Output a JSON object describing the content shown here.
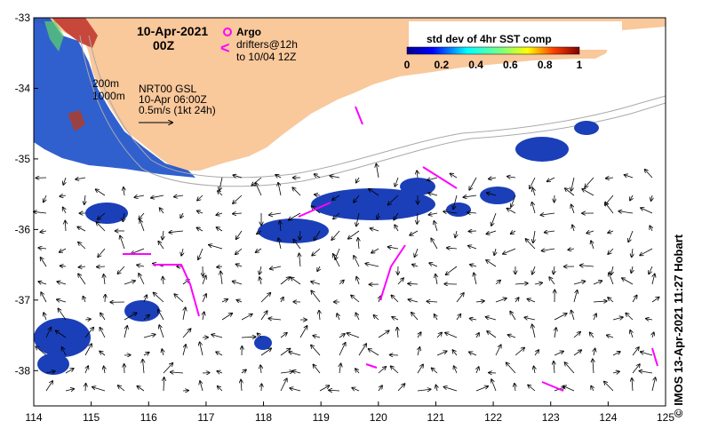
{
  "header": {
    "date": "10-Apr-2021",
    "time": "00Z"
  },
  "legend": {
    "argo_label": "Argo",
    "drifters_line1": "drifters@12h",
    "drifters_line2": "to 10/04 12Z",
    "drifter_symbol": "<",
    "colorbar_title": "std dev of 4hr SST comp",
    "colorbar_ticks": [
      "0",
      "0.2",
      "0.4",
      "0.6",
      "0.8",
      "1"
    ]
  },
  "isobaths": {
    "depth_200": "200m",
    "depth_1000": "1000m"
  },
  "currents": {
    "product": "NRT00 GSL",
    "time": "10-Apr 06:00Z",
    "scale": "0.5m/s (1kt 24h)"
  },
  "axes": {
    "x_ticks": [
      "114",
      "115",
      "116",
      "117",
      "118",
      "119",
      "120",
      "121",
      "122",
      "123",
      "124",
      "125"
    ],
    "y_ticks": [
      "-33",
      "-34",
      "-35",
      "-36",
      "-37",
      "-38"
    ],
    "x_range": [
      114,
      125
    ],
    "y_range": [
      -38.5,
      -33
    ]
  },
  "credit": "© IMOS 13-Apr-2021 11:27 Hobart",
  "colors": {
    "land": "#f9c89b",
    "drifter": "#ff00ff",
    "argo": "#ff00ff",
    "ocean": "#ffffff",
    "isobath": "#a9a9a9"
  }
}
